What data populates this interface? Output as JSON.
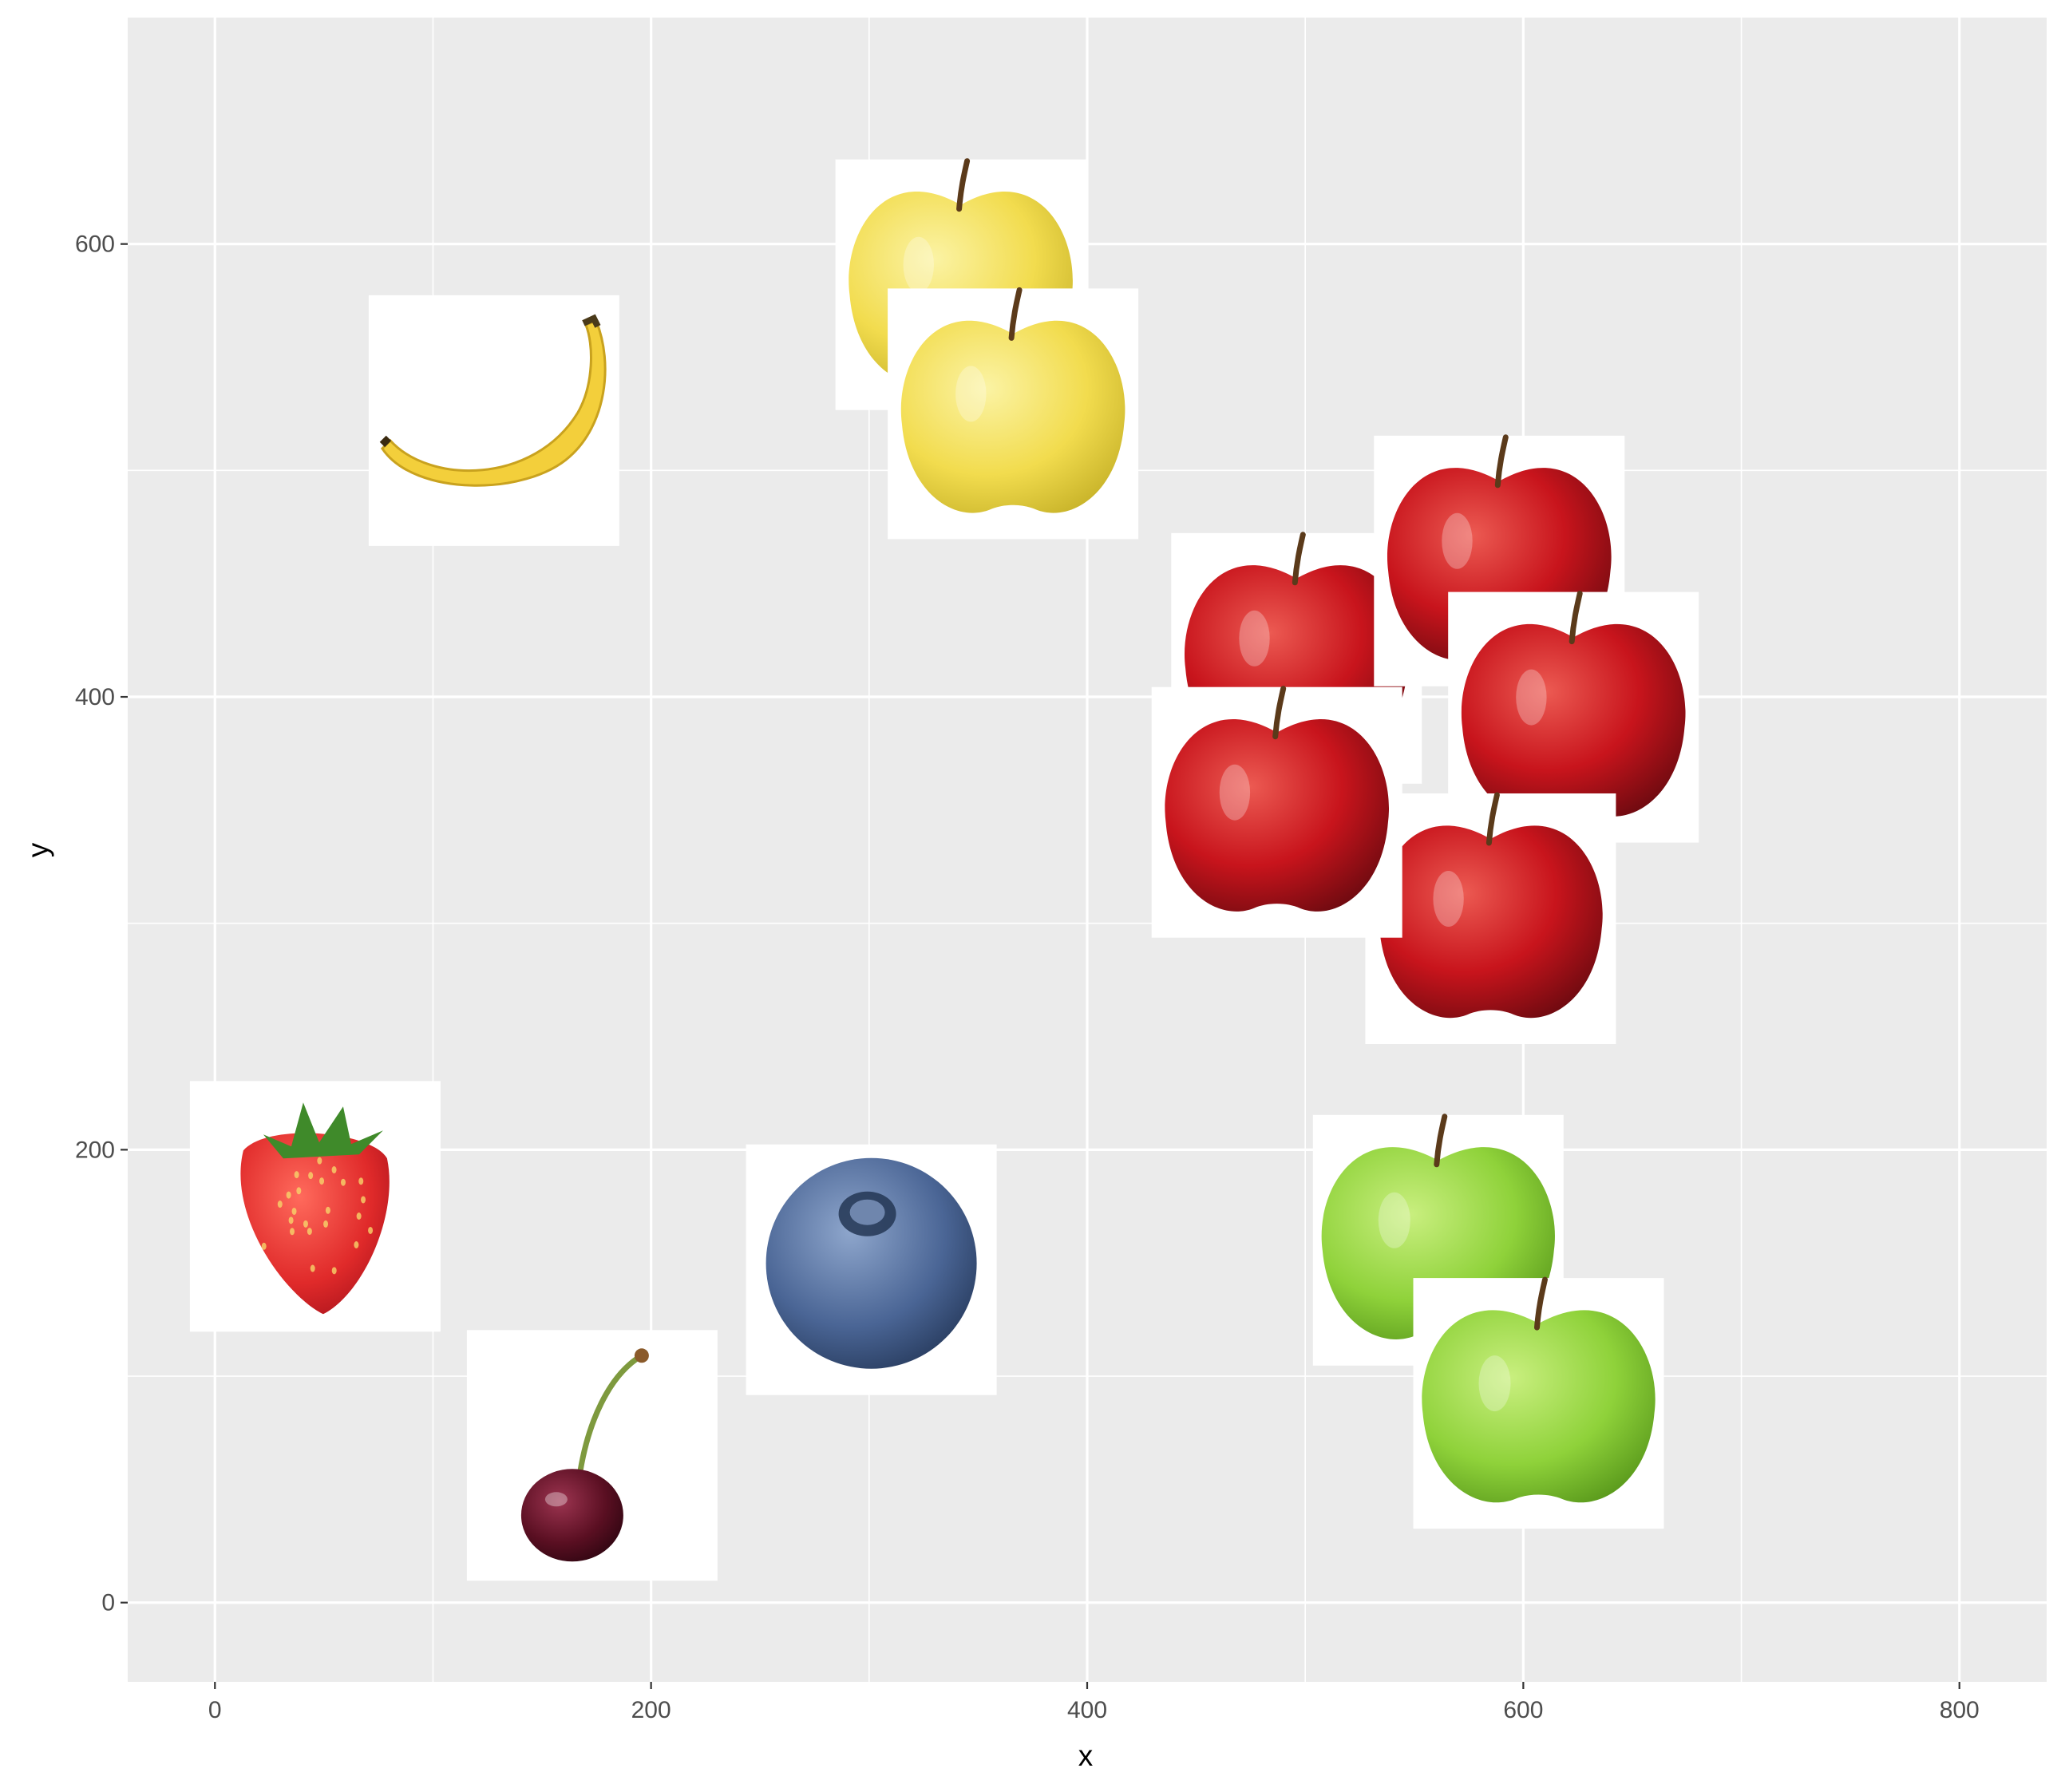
{
  "chart_data": {
    "type": "scatter",
    "title": "",
    "xlabel": "x",
    "ylabel": "y",
    "xlim": [
      -40,
      840
    ],
    "ylim": [
      -35,
      700
    ],
    "x_ticks": [
      0,
      200,
      400,
      600,
      800
    ],
    "y_ticks": [
      0,
      200,
      400,
      600
    ],
    "x_tick_labels": [
      "0",
      "200",
      "400",
      "600",
      "800"
    ],
    "y_tick_labels": [
      "0",
      "200",
      "400",
      "600"
    ],
    "grid": true,
    "legend": "none",
    "marker": "fruit image",
    "points": [
      {
        "fruit": "strawberry",
        "x": 46,
        "y": 175
      },
      {
        "fruit": "cherry",
        "x": 173,
        "y": 65
      },
      {
        "fruit": "blueberry",
        "x": 301,
        "y": 147
      },
      {
        "fruit": "banana",
        "x": 128,
        "y": 522
      },
      {
        "fruit": "golden apple",
        "x": 342,
        "y": 582
      },
      {
        "fruit": "golden apple",
        "x": 366,
        "y": 525
      },
      {
        "fruit": "red apple",
        "x": 496,
        "y": 417
      },
      {
        "fruit": "red apple",
        "x": 589,
        "y": 460
      },
      {
        "fruit": "red apple",
        "x": 623,
        "y": 391
      },
      {
        "fruit": "red apple",
        "x": 585,
        "y": 302
      },
      {
        "fruit": "red apple",
        "x": 487,
        "y": 349
      },
      {
        "fruit": "green apple",
        "x": 561,
        "y": 160
      },
      {
        "fruit": "green apple",
        "x": 607,
        "y": 88
      }
    ]
  },
  "colors": {
    "panel": "#ebebeb",
    "grid": "#ffffff",
    "tick_text": "#4d4d4d",
    "axis_title": "#000000",
    "strawberry": "#e23a3a",
    "cherry": "#5a0f22",
    "blueberry": "#3e5a86",
    "banana": "#f3cf3b",
    "golden_apple": "#f5df55",
    "red_apple": "#c8141c",
    "green_apple": "#8fd23a"
  }
}
